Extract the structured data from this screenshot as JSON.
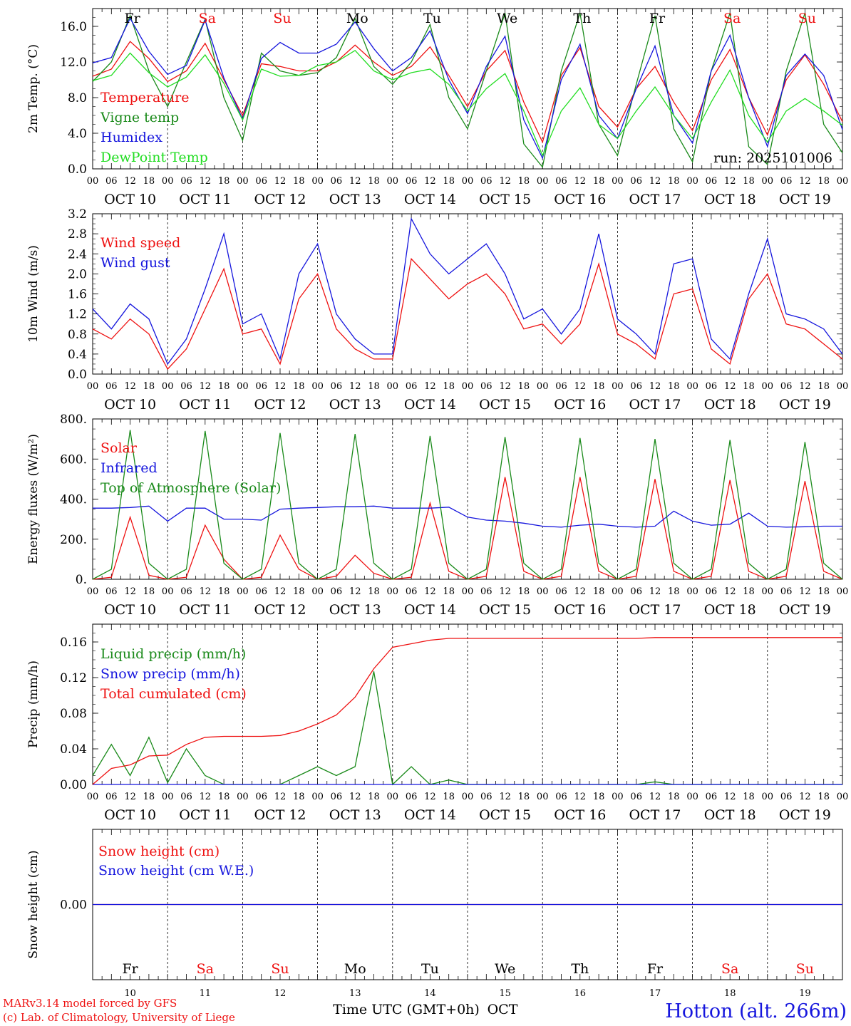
{
  "colors": {
    "red": "#ee1111",
    "green": "#1a8a1a",
    "blue": "#1515dd",
    "lime": "#22dd22",
    "black": "#000000"
  },
  "days": [
    "Fr",
    "Sa",
    "Su",
    "Mo",
    "Tu",
    "We",
    "Th",
    "Fr",
    "Sa",
    "Su"
  ],
  "day_colors": [
    "black",
    "red",
    "red",
    "black",
    "black",
    "black",
    "black",
    "black",
    "red",
    "red"
  ],
  "dates": [
    "OCT 10",
    "OCT 11",
    "OCT 12",
    "OCT 13",
    "OCT 14",
    "OCT 15",
    "OCT 16",
    "OCT 17",
    "OCT 18",
    "OCT 19"
  ],
  "day_numbers": [
    "10",
    "11",
    "12",
    "13",
    "14",
    "15",
    "16",
    "17",
    "18",
    "19"
  ],
  "hour_ticks": [
    "00",
    "06",
    "12",
    "18"
  ],
  "run_label": "run: 2025101006",
  "footer": {
    "model": "MARv3.14 model forced by GFS",
    "lab": "(c) Lab. of Climatology, University of Liege",
    "time_axis": "Time UTC (GMT+0h)",
    "month": "OCT",
    "location": "Hotton (alt. 266m)"
  },
  "chart_data": [
    {
      "type": "line",
      "title": "",
      "ylabel": "2m Temp. (°C)",
      "ylim": [
        0,
        18
      ],
      "yticks": [
        "0.0",
        "4.0",
        "8.0",
        "12.0",
        "16.0"
      ],
      "ytick_values": [
        0,
        4,
        8,
        12,
        16
      ],
      "legend": [
        "Temperature",
        "Vigne temp",
        "Humidex",
        "DewPoint Temp"
      ],
      "x_hours": [
        0,
        6,
        12,
        18,
        24,
        30,
        36,
        42,
        48,
        54,
        60,
        66,
        72,
        78,
        84,
        90,
        96,
        102,
        108,
        114,
        120,
        126,
        132,
        138,
        144,
        150,
        156,
        162,
        168,
        174,
        180,
        186,
        192,
        198,
        204,
        210,
        216,
        222,
        228,
        234,
        240
      ],
      "series": [
        {
          "name": "Temperature",
          "color": "red",
          "values": [
            10.4,
            11.2,
            14.3,
            12.4,
            9.8,
            11.0,
            14.1,
            10.0,
            6.0,
            11.8,
            11.5,
            11.0,
            11.0,
            12.0,
            13.9,
            12.0,
            10.5,
            11.5,
            13.7,
            10.5,
            7.0,
            11.0,
            13.3,
            7.5,
            3.0,
            10.5,
            13.6,
            7.0,
            4.7,
            9.0,
            11.5,
            7.5,
            4.3,
            10.0,
            13.4,
            8.0,
            3.8,
            10.0,
            12.8,
            9.5,
            5.3
          ]
        },
        {
          "name": "Vigne temp",
          "color": "green",
          "values": [
            9.8,
            12.0,
            17.2,
            11.0,
            7.0,
            12.0,
            16.8,
            8.0,
            3.2,
            13.0,
            11.0,
            10.5,
            10.8,
            12.5,
            16.9,
            11.5,
            9.5,
            12.0,
            16.2,
            8.0,
            4.5,
            11.0,
            17.5,
            2.8,
            0.2,
            11.0,
            17.5,
            5.0,
            1.5,
            9.5,
            17.2,
            4.5,
            0.8,
            11.0,
            17.5,
            2.5,
            0.5,
            11.0,
            17.5,
            5.0,
            1.8
          ]
        },
        {
          "name": "Humidex",
          "color": "blue",
          "values": [
            11.9,
            12.5,
            16.9,
            13.2,
            10.6,
            11.6,
            16.7,
            10.2,
            5.6,
            12.4,
            14.2,
            13.0,
            13.0,
            14.0,
            16.5,
            13.5,
            11.0,
            12.5,
            15.5,
            10.0,
            6.2,
            11.5,
            14.9,
            5.5,
            1.2,
            10.0,
            14.0,
            6.0,
            3.4,
            9.0,
            13.8,
            6.0,
            2.9,
            11.0,
            15.0,
            8.0,
            2.5,
            10.5,
            12.9,
            10.5,
            4.4
          ]
        },
        {
          "name": "DewPoint Temp",
          "color": "lime",
          "values": [
            9.9,
            10.5,
            13.0,
            10.8,
            9.2,
            10.3,
            12.8,
            9.6,
            5.5,
            11.2,
            10.4,
            10.5,
            11.6,
            12.0,
            13.3,
            11.0,
            10.0,
            10.8,
            11.2,
            9.5,
            6.5,
            9.0,
            10.7,
            6.5,
            1.5,
            6.5,
            9.1,
            5.0,
            3.4,
            6.5,
            9.2,
            6.0,
            3.4,
            7.5,
            11.1,
            6.0,
            3.0,
            6.5,
            7.9,
            6.5,
            4.9
          ]
        }
      ]
    },
    {
      "type": "line",
      "ylabel": "10m Wind (m/s)",
      "ylim": [
        0,
        3.2
      ],
      "yticks": [
        "0.0",
        "0.4",
        "0.8",
        "1.2",
        "1.6",
        "2.0",
        "2.4",
        "2.8",
        "3.2"
      ],
      "ytick_values": [
        0,
        0.4,
        0.8,
        1.2,
        1.6,
        2.0,
        2.4,
        2.8,
        3.2
      ],
      "legend": [
        "Wind speed",
        "Wind gust"
      ],
      "x_hours": [
        0,
        6,
        12,
        18,
        24,
        30,
        36,
        42,
        48,
        54,
        60,
        66,
        72,
        78,
        84,
        90,
        96,
        102,
        108,
        114,
        120,
        126,
        132,
        138,
        144,
        150,
        156,
        162,
        168,
        174,
        180,
        186,
        192,
        198,
        204,
        210,
        216,
        222,
        228,
        234,
        240
      ],
      "series": [
        {
          "name": "Wind speed",
          "color": "red",
          "values": [
            0.9,
            0.7,
            1.1,
            0.8,
            0.1,
            0.5,
            1.3,
            2.1,
            0.8,
            0.9,
            0.2,
            1.5,
            2.0,
            0.9,
            0.5,
            0.3,
            0.3,
            2.3,
            1.9,
            1.5,
            1.8,
            2.0,
            1.6,
            0.9,
            1.0,
            0.6,
            1.0,
            2.2,
            0.8,
            0.6,
            0.3,
            1.6,
            1.7,
            0.5,
            0.2,
            1.5,
            2.0,
            1.0,
            0.9,
            0.6,
            0.3
          ]
        },
        {
          "name": "Wind gust",
          "color": "blue",
          "values": [
            1.3,
            0.9,
            1.4,
            1.1,
            0.2,
            0.7,
            1.7,
            2.8,
            1.0,
            1.2,
            0.3,
            2.0,
            2.6,
            1.2,
            0.7,
            0.4,
            0.4,
            3.1,
            2.4,
            2.0,
            2.3,
            2.6,
            2.0,
            1.1,
            1.3,
            0.8,
            1.3,
            2.8,
            1.1,
            0.8,
            0.4,
            2.2,
            2.3,
            0.7,
            0.3,
            1.6,
            2.7,
            1.2,
            1.1,
            0.9,
            0.4
          ]
        }
      ]
    },
    {
      "type": "line",
      "ylabel": "Energy fluxes (W/m²)",
      "ylim": [
        0,
        800
      ],
      "yticks": [
        "0.",
        "200.",
        "400.",
        "600.",
        "800."
      ],
      "ytick_values": [
        0,
        200,
        400,
        600,
        800
      ],
      "legend": [
        "Solar",
        "Infrared",
        "Top of Atmosphere (Solar)"
      ],
      "x_hours": [
        0,
        6,
        12,
        18,
        24,
        30,
        36,
        42,
        48,
        54,
        60,
        66,
        72,
        78,
        84,
        90,
        96,
        102,
        108,
        114,
        120,
        126,
        132,
        138,
        144,
        150,
        156,
        162,
        168,
        174,
        180,
        186,
        192,
        198,
        204,
        210,
        216,
        222,
        228,
        234,
        240
      ],
      "series": [
        {
          "name": "Solar",
          "color": "red",
          "values": [
            0,
            10,
            310,
            20,
            0,
            10,
            270,
            100,
            0,
            10,
            220,
            50,
            0,
            15,
            120,
            30,
            0,
            10,
            380,
            40,
            0,
            15,
            510,
            40,
            0,
            15,
            510,
            40,
            0,
            15,
            500,
            40,
            0,
            15,
            495,
            40,
            0,
            15,
            490,
            40,
            0
          ]
        },
        {
          "name": "Infrared",
          "color": "blue",
          "values": [
            355,
            355,
            358,
            365,
            290,
            355,
            355,
            300,
            300,
            295,
            350,
            355,
            358,
            362,
            362,
            365,
            355,
            355,
            355,
            360,
            310,
            295,
            290,
            280,
            265,
            260,
            270,
            275,
            265,
            260,
            265,
            340,
            290,
            270,
            275,
            330,
            265,
            260,
            262,
            265,
            265
          ]
        },
        {
          "name": "Top of Atmosphere (Solar)",
          "color": "green",
          "values": [
            0,
            50,
            745,
            80,
            0,
            50,
            740,
            80,
            0,
            50,
            730,
            80,
            0,
            50,
            725,
            80,
            0,
            50,
            715,
            80,
            0,
            50,
            710,
            80,
            0,
            50,
            705,
            80,
            0,
            50,
            700,
            80,
            0,
            50,
            695,
            80,
            0,
            50,
            685,
            80,
            0
          ]
        }
      ]
    },
    {
      "type": "line",
      "ylabel": "Precip (mm/h)",
      "ylim": [
        0,
        0.18
      ],
      "yticks": [
        "0.00",
        "0.04",
        "0.08",
        "0.12",
        "0.16"
      ],
      "ytick_values": [
        0,
        0.04,
        0.08,
        0.12,
        0.16
      ],
      "legend": [
        "Liquid precip (mm/h)",
        "Snow precip (mm/h)",
        "Total cumulated (cm)"
      ],
      "x_hours": [
        0,
        6,
        12,
        18,
        24,
        30,
        36,
        42,
        48,
        54,
        60,
        66,
        72,
        78,
        84,
        90,
        96,
        102,
        108,
        114,
        120,
        126,
        132,
        138,
        144,
        150,
        156,
        162,
        168,
        174,
        180,
        186,
        192,
        198,
        204,
        210,
        216,
        222,
        228,
        234,
        240
      ],
      "series": [
        {
          "name": "Liquid precip (mm/h)",
          "color": "green",
          "values": [
            0.01,
            0.045,
            0.01,
            0.053,
            0.002,
            0.04,
            0.01,
            0.0,
            0.0,
            0.0,
            0.0,
            0.01,
            0.02,
            0.01,
            0.02,
            0.127,
            0.0,
            0.02,
            0.0,
            0.005,
            0.0,
            0.0,
            0.0,
            0.0,
            0.0,
            0.0,
            0.0,
            0.0,
            0.0,
            0.0,
            0.003,
            0.0,
            0.0,
            0.0,
            0.0,
            0.0,
            0.0,
            0.0,
            0.0,
            0.0,
            0.0
          ]
        },
        {
          "name": "Snow precip (mm/h)",
          "color": "blue",
          "values": [
            0,
            0,
            0,
            0,
            0,
            0,
            0,
            0,
            0,
            0,
            0,
            0,
            0,
            0,
            0,
            0,
            0,
            0,
            0,
            0,
            0,
            0,
            0,
            0,
            0,
            0,
            0,
            0,
            0,
            0,
            0,
            0,
            0,
            0,
            0,
            0,
            0,
            0,
            0,
            0,
            0
          ]
        },
        {
          "name": "Total cumulated (cm)",
          "color": "red",
          "values": [
            0.0,
            0.018,
            0.022,
            0.032,
            0.033,
            0.045,
            0.053,
            0.054,
            0.054,
            0.054,
            0.055,
            0.06,
            0.068,
            0.078,
            0.098,
            0.13,
            0.154,
            0.158,
            0.162,
            0.164,
            0.164,
            0.164,
            0.164,
            0.164,
            0.164,
            0.164,
            0.164,
            0.164,
            0.164,
            0.164,
            0.165,
            0.165,
            0.165,
            0.165,
            0.165,
            0.165,
            0.165,
            0.165,
            0.165,
            0.165,
            0.165
          ]
        }
      ]
    },
    {
      "type": "line",
      "ylabel": "Snow height (cm)",
      "ylim": [
        -1,
        1
      ],
      "yticks": [
        "0.00"
      ],
      "ytick_values": [
        0
      ],
      "legend": [
        "Snow height (cm)",
        "Snow height (cm W.E.)"
      ],
      "x_hours": [
        0,
        240
      ],
      "series": [
        {
          "name": "Snow height (cm)",
          "color": "red",
          "values": [
            0,
            0
          ]
        },
        {
          "name": "Snow height (cm W.E.)",
          "color": "blue",
          "values": [
            0,
            0
          ]
        }
      ]
    }
  ]
}
